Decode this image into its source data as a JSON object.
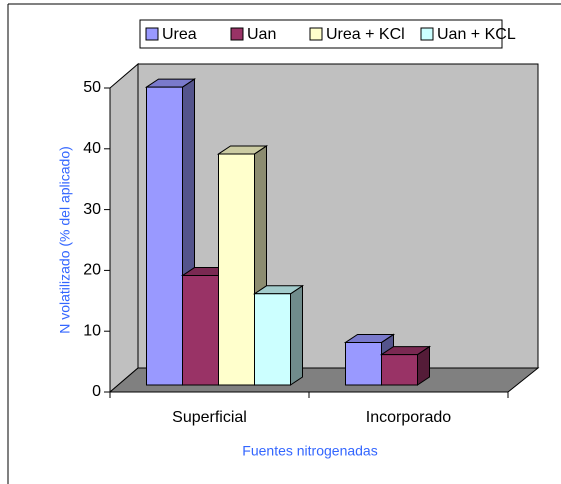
{
  "chart_data": {
    "type": "bar3d",
    "x_label": "Fuentes nitrogenadas",
    "y_label": "N volatilizado (% del aplicado)",
    "categories": [
      "Superficial",
      "Incorporado"
    ],
    "series": [
      {
        "name": "Urea",
        "color": "#9999ff",
        "values": [
          49,
          7
        ]
      },
      {
        "name": "Uan",
        "color": "#993366",
        "values": [
          18,
          5
        ]
      },
      {
        "name": "Urea + KCl",
        "color": "#ffffcc",
        "values": [
          38,
          null
        ]
      },
      {
        "name": "Uan + KCL",
        "color": "#ccffff",
        "values": [
          15,
          null
        ]
      }
    ],
    "ylim": [
      0,
      50
    ],
    "yticks": [
      0,
      10,
      20,
      30,
      40,
      50
    ],
    "legend": "top"
  }
}
